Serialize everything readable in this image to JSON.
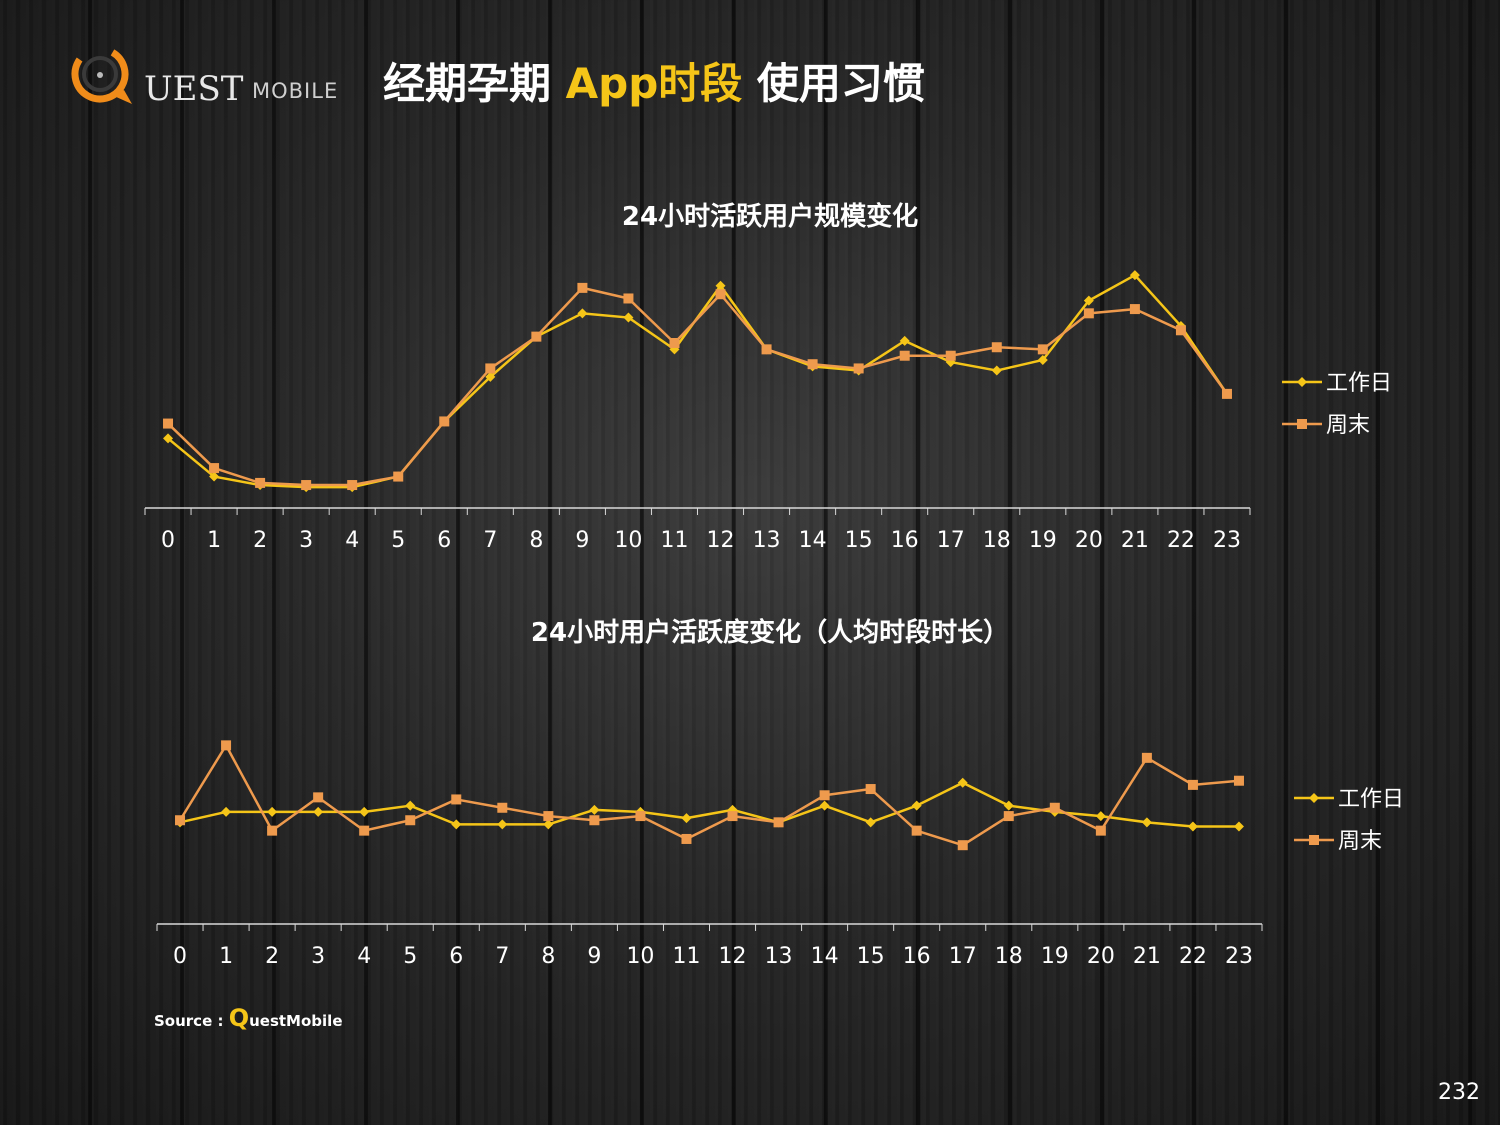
{
  "header": {
    "logo_text": "UEST",
    "logo_subtext": "MOBILE",
    "title_part1": "经期孕期 ",
    "title_highlight": "App时段",
    "title_part2": " 使用习惯"
  },
  "colors": {
    "workday": "#f5c518",
    "weekend": "#ee9a4d",
    "accent": "#f5c518",
    "axis": "#d9d9d9"
  },
  "charts": [
    {
      "id": "active-users",
      "title": "24小时活跃用户规模变化",
      "legend_placement": "right"
    },
    {
      "id": "activity-duration",
      "title": "24小时用户活跃度变化（人均时段时长）",
      "legend_placement": "right"
    }
  ],
  "chart_data": [
    {
      "type": "line",
      "title": "24小时活跃用户规模变化",
      "categories": [
        "0",
        "1",
        "2",
        "3",
        "4",
        "5",
        "6",
        "7",
        "8",
        "9",
        "10",
        "11",
        "12",
        "13",
        "14",
        "15",
        "16",
        "17",
        "18",
        "19",
        "20",
        "21",
        "22",
        "23"
      ],
      "ylim": [
        0,
        100
      ],
      "series": [
        {
          "name": "工作日",
          "marker": "diamond",
          "color": "#f5c518",
          "values": [
            30,
            12,
            8,
            7,
            7,
            12,
            38,
            59,
            78,
            89,
            87,
            72,
            102,
            72,
            64,
            62,
            76,
            66,
            62,
            67,
            95,
            107,
            83,
            51
          ]
        },
        {
          "name": "周末",
          "marker": "square",
          "color": "#ee9a4d",
          "values": [
            37,
            16,
            9,
            8,
            8,
            12,
            38,
            63,
            78,
            101,
            96,
            75,
            98,
            72,
            65,
            63,
            69,
            69,
            73,
            72,
            89,
            91,
            81,
            51
          ]
        }
      ]
    },
    {
      "type": "line",
      "title": "24小时用户活跃度变化（人均时段时长）",
      "categories": [
        "0",
        "1",
        "2",
        "3",
        "4",
        "5",
        "6",
        "7",
        "8",
        "9",
        "10",
        "11",
        "12",
        "13",
        "14",
        "15",
        "16",
        "17",
        "18",
        "19",
        "20",
        "21",
        "22",
        "23"
      ],
      "ylim": [
        0,
        100
      ],
      "series": [
        {
          "name": "工作日",
          "marker": "diamond",
          "color": "#f5c518",
          "values": [
            46,
            51,
            51,
            51,
            51,
            54,
            45,
            45,
            45,
            52,
            51,
            48,
            52,
            46,
            54,
            46,
            54,
            65,
            54,
            51,
            49,
            46,
            44,
            44
          ]
        },
        {
          "name": "周末",
          "marker": "square",
          "color": "#ee9a4d",
          "values": [
            47,
            83,
            42,
            58,
            42,
            47,
            57,
            53,
            49,
            47,
            49,
            38,
            49,
            46,
            59,
            62,
            42,
            35,
            49,
            53,
            42,
            77,
            64,
            66
          ]
        }
      ]
    }
  ],
  "footer": {
    "source_label": "Source : ",
    "source_brand_q": "Q",
    "source_brand_rest": "uestMobile",
    "page_number": "232"
  }
}
